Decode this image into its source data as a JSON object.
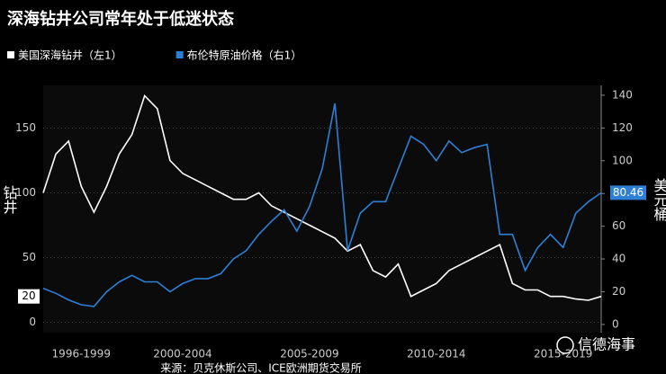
{
  "chart_data": {
    "type": "line",
    "title": "深海钻井公司常年处于低迷状态",
    "y_label": "钻井",
    "y2_label": "美元桶",
    "source": "来源：贝克休斯公司、ICE欧洲期货交易所",
    "watermark": "信德海事",
    "x": [
      1997,
      1997.5,
      1998,
      1998.5,
      1999,
      1999.5,
      2000,
      2000.5,
      2001,
      2001.5,
      2002,
      2002.5,
      2003,
      2003.5,
      2004,
      2004.5,
      2005,
      2005.5,
      2006,
      2006.5,
      2007,
      2007.5,
      2008,
      2008.5,
      2009,
      2009.5,
      2010,
      2010.5,
      2011,
      2011.5,
      2012,
      2012.5,
      2013,
      2013.5,
      2014,
      2014.5,
      2015,
      2015.5,
      2016,
      2016.5,
      2017,
      2017.5,
      2018,
      2018.5,
      2019
    ],
    "xlim": [
      1997,
      2019
    ],
    "xticks": [
      {
        "value": 1998.5,
        "label": "1996-1999"
      },
      {
        "value": 2002.5,
        "label": "2000-2004"
      },
      {
        "value": 2007.5,
        "label": "2005-2009"
      },
      {
        "value": 2012.5,
        "label": "2010-2014"
      },
      {
        "value": 2017.5,
        "label": "2015-2019"
      }
    ],
    "ylim": [
      -8,
      183
    ],
    "yticks": [
      0,
      50,
      100,
      150
    ],
    "y2lim": [
      -5,
      146
    ],
    "y2ticks": [
      0,
      20,
      40,
      60,
      80,
      100,
      120,
      140
    ],
    "grid": true,
    "series": [
      {
        "name": "美国深海钻井（左1）",
        "color": "#ffffff",
        "values": [
          100,
          130,
          140,
          105,
          85,
          105,
          130,
          145,
          175,
          165,
          125,
          115,
          110,
          105,
          100,
          95,
          95,
          100,
          90,
          85,
          80,
          75,
          70,
          65,
          55,
          60,
          40,
          35,
          45,
          20,
          25,
          30,
          40,
          45,
          50,
          55,
          60,
          30,
          25,
          25,
          20,
          20,
          18,
          17,
          20
        ]
      },
      {
        "name": "布伦特原油价格（右1）",
        "color": "#2e7fd6",
        "axis": "y2",
        "values": [
          22,
          19,
          15,
          12,
          11,
          20,
          26,
          30,
          26,
          26,
          20,
          25,
          28,
          28,
          31,
          40,
          45,
          55,
          63,
          70,
          57,
          72,
          95,
          135,
          45,
          68,
          75,
          75,
          95,
          115,
          110,
          100,
          112,
          105,
          108,
          110,
          55,
          55,
          33,
          47,
          55,
          47,
          68,
          75,
          80.46
        ]
      }
    ]
  }
}
